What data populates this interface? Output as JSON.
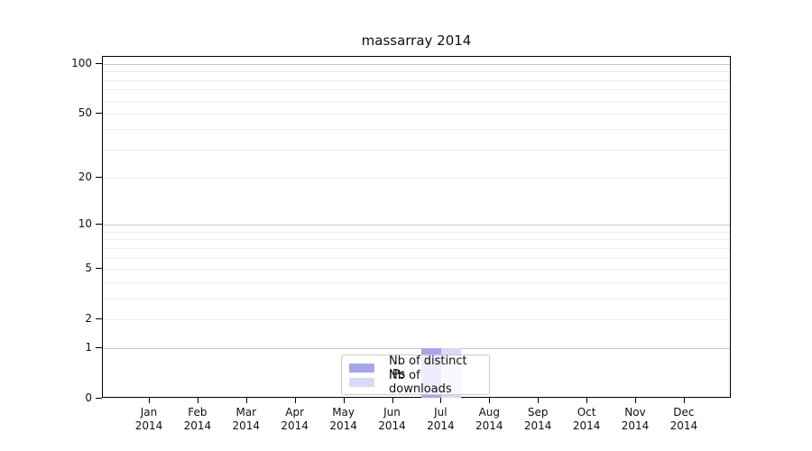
{
  "chart_data": {
    "type": "bar",
    "title": "massarray 2014",
    "categories": [
      "Jan",
      "Feb",
      "Mar",
      "Apr",
      "May",
      "Jun",
      "Jul",
      "Aug",
      "Sep",
      "Oct",
      "Nov",
      "Dec"
    ],
    "x_year_label": "2014",
    "series": [
      {
        "name": "Nb of distinct IPs",
        "color": "#a6a6ea",
        "values": [
          0,
          0,
          0,
          0,
          0,
          0,
          1,
          0,
          0,
          0,
          0,
          0
        ]
      },
      {
        "name": "Nb of downloads",
        "color": "#dadaf7",
        "values": [
          0,
          0,
          0,
          0,
          0,
          0,
          1,
          0,
          0,
          0,
          0,
          0
        ]
      }
    ],
    "y_axis": {
      "scale": "log1p",
      "labeled_ticks": [
        0,
        1,
        2,
        5,
        10,
        20,
        50,
        100
      ],
      "major_gridlines": [
        1,
        10,
        100
      ],
      "minor_gridlines": [
        2,
        3,
        4,
        5,
        6,
        7,
        8,
        9,
        20,
        30,
        40,
        50,
        60,
        70,
        80,
        90
      ],
      "ylim_top_value": 100
    },
    "grid": "horizontal",
    "legend_position": "lower-center"
  },
  "colors": {
    "major_grid": "#c8c8c8",
    "minor_grid": "#ececec",
    "spine": "#000000",
    "legend_border": "#cccccc"
  }
}
